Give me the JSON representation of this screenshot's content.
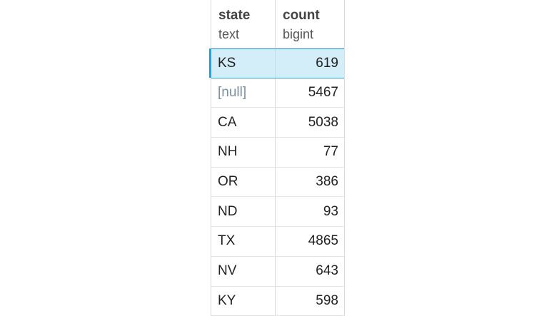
{
  "columns": [
    {
      "name": "state",
      "type": "text"
    },
    {
      "name": "count",
      "type": "bigint"
    }
  ],
  "rows": [
    {
      "state": "KS",
      "count": "619",
      "selected": true
    },
    {
      "state": "[null]",
      "count": "5467",
      "is_null": true
    },
    {
      "state": "CA",
      "count": "5038"
    },
    {
      "state": "NH",
      "count": "77"
    },
    {
      "state": "OR",
      "count": "386"
    },
    {
      "state": "ND",
      "count": "93"
    },
    {
      "state": "TX",
      "count": "4865"
    },
    {
      "state": "NV",
      "count": "643"
    },
    {
      "state": "KY",
      "count": "598"
    }
  ]
}
